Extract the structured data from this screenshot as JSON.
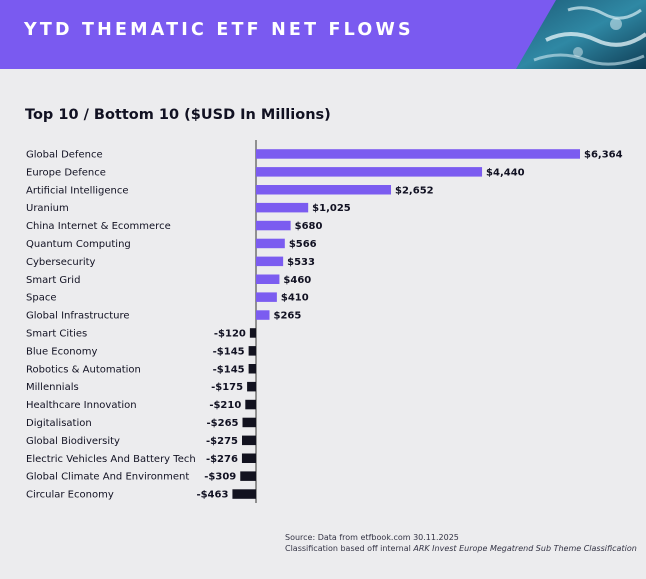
{
  "header": {
    "title": "YTD THEMATIC ETF NET FLOWS"
  },
  "colors": {
    "banner": "#7a5af0",
    "positive": "#7b5cf0",
    "negative": "#12121f",
    "axis": "#333333",
    "text": "#111122"
  },
  "chart_data": {
    "type": "bar",
    "orientation": "horizontal",
    "title": "Top 10 / Bottom 10 ($USD In Millions)",
    "categories": [
      "Global Defence",
      "Europe Defence",
      "Artificial Intelligence",
      "Uranium",
      "China Internet & Ecommerce",
      "Quantum Computing",
      "Cybersecurity",
      "Smart Grid",
      "Space",
      "Global Infrastructure",
      "Smart Cities",
      "Blue Economy",
      "Robotics & Automation",
      "Millennials",
      "Healthcare Innovation",
      "Digitalisation",
      "Global Biodiversity",
      "Electric Vehicles And Battery Tech",
      "Global Climate And Environment",
      "Circular Economy"
    ],
    "values": [
      6364,
      4440,
      2652,
      1025,
      680,
      566,
      533,
      460,
      410,
      265,
      -120,
      -145,
      -145,
      -175,
      -210,
      -265,
      -275,
      -276,
      -309,
      -463
    ],
    "labels": [
      "$6,364",
      "$4,440",
      "$2,652",
      "$1,025",
      "$680",
      "$566",
      "$533",
      "$460",
      "$410",
      "$265",
      "-$120",
      "-$145",
      "-$145",
      "-$175",
      "-$210",
      "-$265",
      "-$275",
      "-$276",
      "-$309",
      "-$463"
    ],
    "xlabel": "",
    "ylabel": "",
    "xlim": [
      -463,
      6364
    ]
  },
  "footer": {
    "source_line": "Source: Data from etfbook.com 30.11.2025",
    "classification_prefix": "Classification based off internal ",
    "classification_italic": "ARK Invest Europe Megatrend Sub Theme Classification"
  }
}
